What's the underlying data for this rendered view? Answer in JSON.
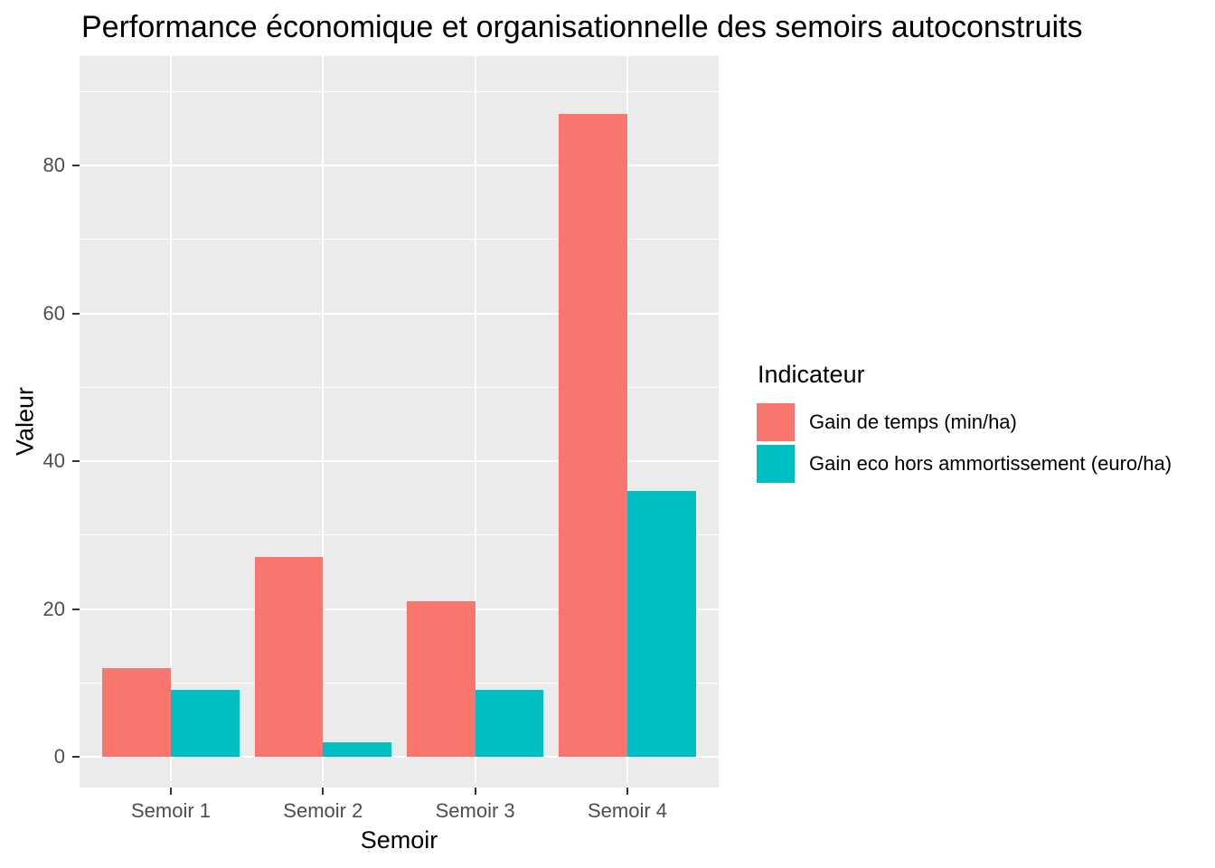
{
  "title": "Performance économique et organisationnelle des semoirs autoconstruits",
  "chart_data": {
    "type": "bar",
    "grouped": "dodge",
    "title": "Performance économique et organisationnelle des semoirs autoconstruits",
    "xlabel": "Semoir",
    "ylabel": "Valeur",
    "categories": [
      "Semoir 1",
      "Semoir 2",
      "Semoir 3",
      "Semoir 4"
    ],
    "series": [
      {
        "name": "Gain de temps (min/ha)",
        "color": "#F8766D",
        "values": [
          12,
          27,
          21,
          87
        ]
      },
      {
        "name": "Gain eco hors ammortissement (euro/ha)",
        "color": "#00BFC4",
        "values": [
          9,
          2,
          9,
          36
        ]
      }
    ],
    "y_ticks": [
      0,
      20,
      40,
      60,
      80
    ],
    "y_minor_ticks": [
      10,
      30,
      50,
      70,
      90
    ],
    "ylim": [
      -4,
      95
    ],
    "grid": "on",
    "legend_title": "Indicateur",
    "legend_position": "right",
    "panel_background": "#EBEBEB",
    "gridline_color": "#FFFFFF",
    "tick_label_color": "#4D4D4D",
    "axis_tick_color": "#333333"
  }
}
